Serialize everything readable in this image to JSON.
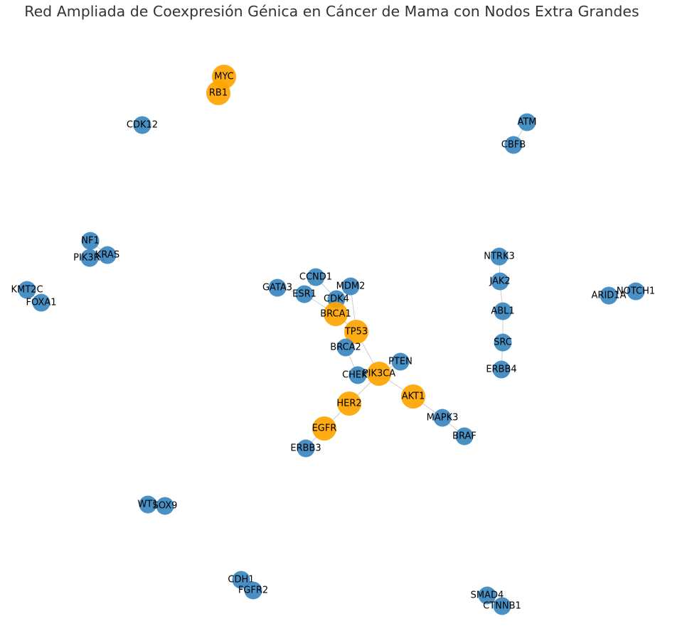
{
  "title": "Red Ampliada de Coexpresión Génica en Cáncer de Mama con Nodos Extra Grandes",
  "colors": {
    "regular_node": "#3a87c0",
    "hub_node": "#ffa500",
    "edge": "#cccccc",
    "label": "#000000",
    "title": "#333333"
  },
  "nodes": [
    {
      "id": "MYC",
      "type": "hub"
    },
    {
      "id": "RB1",
      "type": "hub"
    },
    {
      "id": "CDK12",
      "type": "regular"
    },
    {
      "id": "ATM",
      "type": "regular"
    },
    {
      "id": "CBFB",
      "type": "regular"
    },
    {
      "id": "NF1",
      "type": "regular"
    },
    {
      "id": "PIK3R1",
      "type": "regular"
    },
    {
      "id": "KRAS",
      "type": "regular"
    },
    {
      "id": "NTRK3",
      "type": "regular"
    },
    {
      "id": "KMT2C",
      "type": "regular"
    },
    {
      "id": "FOXA1",
      "type": "regular"
    },
    {
      "id": "CCND1",
      "type": "regular"
    },
    {
      "id": "GATA3",
      "type": "regular"
    },
    {
      "id": "MDM2",
      "type": "regular"
    },
    {
      "id": "ESR1",
      "type": "regular"
    },
    {
      "id": "CDK4",
      "type": "regular"
    },
    {
      "id": "JAK2",
      "type": "regular"
    },
    {
      "id": "ARID1A",
      "type": "regular"
    },
    {
      "id": "NOTCH1",
      "type": "regular"
    },
    {
      "id": "BRCA1",
      "type": "hub"
    },
    {
      "id": "ABL1",
      "type": "regular"
    },
    {
      "id": "TP53",
      "type": "hub"
    },
    {
      "id": "SRC",
      "type": "regular"
    },
    {
      "id": "BRCA2",
      "type": "regular"
    },
    {
      "id": "PTEN",
      "type": "regular"
    },
    {
      "id": "ERBB4",
      "type": "regular"
    },
    {
      "id": "CHEK2",
      "type": "regular"
    },
    {
      "id": "PIK3CA",
      "type": "hub"
    },
    {
      "id": "AKT1",
      "type": "hub"
    },
    {
      "id": "HER2",
      "type": "hub"
    },
    {
      "id": "MAPK3",
      "type": "regular"
    },
    {
      "id": "EGFR",
      "type": "hub"
    },
    {
      "id": "BRAF",
      "type": "regular"
    },
    {
      "id": "ERBB3",
      "type": "regular"
    },
    {
      "id": "WT1",
      "type": "regular"
    },
    {
      "id": "SOX9",
      "type": "regular"
    },
    {
      "id": "CDH1",
      "type": "regular"
    },
    {
      "id": "FGFR2",
      "type": "regular"
    },
    {
      "id": "SMAD4",
      "type": "regular"
    },
    {
      "id": "CTNNB1",
      "type": "regular"
    }
  ],
  "edges": [
    [
      "MYC",
      "RB1"
    ],
    [
      "ATM",
      "CBFB"
    ],
    [
      "NF1",
      "PIK3R1"
    ],
    [
      "NF1",
      "KRAS"
    ],
    [
      "PIK3R1",
      "KRAS"
    ],
    [
      "KMT2C",
      "FOXA1"
    ],
    [
      "NTRK3",
      "JAK2"
    ],
    [
      "JAK2",
      "ABL1"
    ],
    [
      "ABL1",
      "SRC"
    ],
    [
      "SRC",
      "ERBB4"
    ],
    [
      "ARID1A",
      "NOTCH1"
    ],
    [
      "GATA3",
      "ESR1"
    ],
    [
      "ESR1",
      "CCND1"
    ],
    [
      "ESR1",
      "BRCA1"
    ],
    [
      "CCND1",
      "CDK4"
    ],
    [
      "MDM2",
      "CDK4"
    ],
    [
      "CDK4",
      "BRCA1"
    ],
    [
      "BRCA1",
      "TP53"
    ],
    [
      "MDM2",
      "TP53"
    ],
    [
      "TP53",
      "BRCA2"
    ],
    [
      "TP53",
      "PIK3CA"
    ],
    [
      "BRCA2",
      "CHEK2"
    ],
    [
      "CHEK2",
      "PIK3CA"
    ],
    [
      "PTEN",
      "PIK3CA"
    ],
    [
      "PIK3CA",
      "AKT1"
    ],
    [
      "PIK3CA",
      "HER2"
    ],
    [
      "AKT1",
      "MAPK3"
    ],
    [
      "MAPK3",
      "BRAF"
    ],
    [
      "HER2",
      "EGFR"
    ],
    [
      "EGFR",
      "ERBB3"
    ],
    [
      "WT1",
      "SOX9"
    ],
    [
      "CDH1",
      "FGFR2"
    ],
    [
      "SMAD4",
      "CTNNB1"
    ]
  ]
}
